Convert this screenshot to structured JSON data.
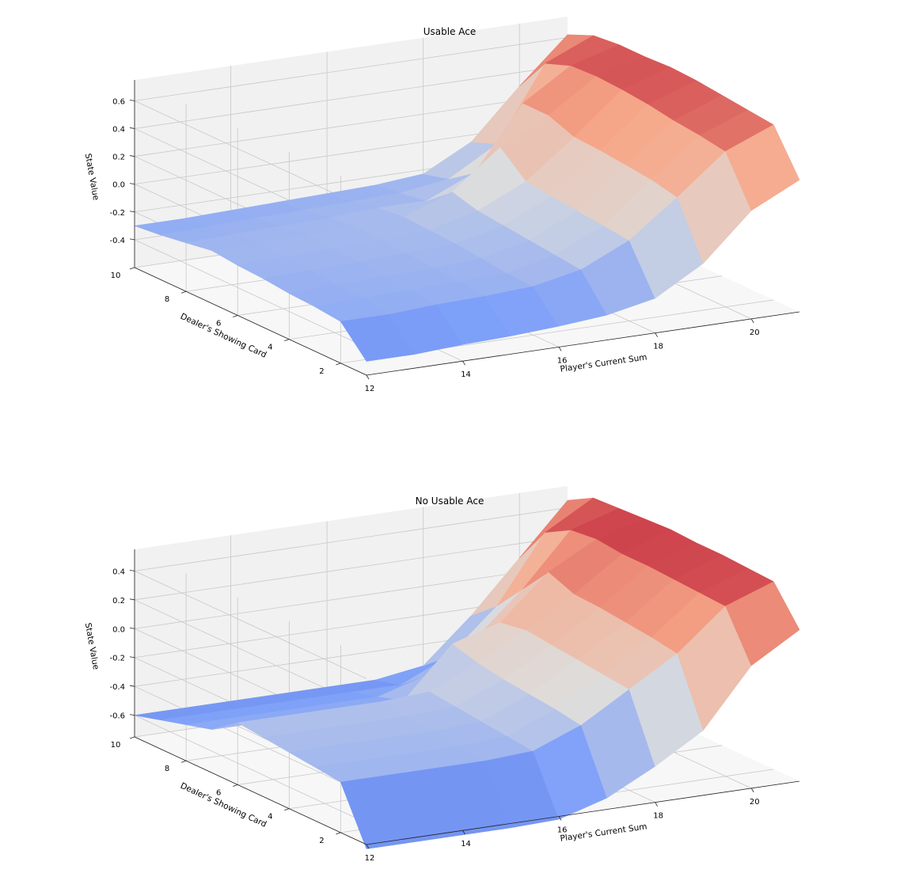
{
  "figure": {
    "background": "#ffffff",
    "pane_color": "#f2f2f2",
    "grid_color": "#c8c8c8"
  },
  "chart_data": [
    {
      "type": "surface",
      "title": "Usable Ace",
      "xlabel": "Player's Current Sum",
      "ylabel": "Dealer's Showing Card",
      "zlabel": "State Value",
      "x": [
        12,
        13,
        14,
        15,
        16,
        17,
        18,
        19,
        20,
        21
      ],
      "y": [
        1,
        2,
        3,
        4,
        5,
        6,
        7,
        8,
        9,
        10
      ],
      "x_ticks": [
        12,
        14,
        16,
        18,
        20
      ],
      "y_ticks": [
        2,
        4,
        6,
        8,
        10
      ],
      "z_ticks": [
        -0.4,
        -0.2,
        0.0,
        0.2,
        0.4,
        0.6
      ],
      "xlim": [
        12,
        21
      ],
      "ylim": [
        1,
        10
      ],
      "zlim": [
        -0.6,
        0.75
      ],
      "colormap": "coolwarm",
      "z": [
        [
          -0.5,
          -0.5,
          -0.48,
          -0.47,
          -0.45,
          -0.42,
          -0.35,
          -0.15,
          0.18,
          0.35
        ],
        [
          -0.3,
          -0.3,
          -0.28,
          -0.27,
          -0.25,
          -0.18,
          -0.02,
          0.24,
          0.52,
          0.66
        ],
        [
          -0.28,
          -0.27,
          -0.26,
          -0.25,
          -0.24,
          -0.16,
          0.0,
          0.28,
          0.55,
          0.68
        ],
        [
          -0.27,
          -0.26,
          -0.25,
          -0.24,
          -0.22,
          -0.14,
          0.02,
          0.3,
          0.57,
          0.7
        ],
        [
          -0.25,
          -0.24,
          -0.23,
          -0.22,
          -0.2,
          -0.12,
          0.04,
          0.32,
          0.6,
          0.72
        ],
        [
          -0.24,
          -0.23,
          -0.22,
          -0.21,
          -0.19,
          -0.1,
          0.06,
          0.33,
          0.62,
          0.73
        ],
        [
          -0.22,
          -0.22,
          -0.21,
          -0.2,
          -0.18,
          -0.05,
          0.22,
          0.4,
          0.63,
          0.72
        ],
        [
          -0.25,
          -0.24,
          -0.23,
          -0.22,
          -0.2,
          -0.2,
          -0.05,
          0.4,
          0.62,
          0.72
        ],
        [
          -0.28,
          -0.27,
          -0.26,
          -0.25,
          -0.24,
          -0.23,
          -0.18,
          0.02,
          0.55,
          0.7
        ],
        [
          -0.3,
          -0.3,
          -0.29,
          -0.28,
          -0.27,
          -0.26,
          -0.23,
          -0.05,
          0.3,
          0.62
        ]
      ]
    },
    {
      "type": "surface",
      "title": "No Usable Ace",
      "xlabel": "Player's Current Sum",
      "ylabel": "Dealer's Showing Card",
      "zlabel": "State Value",
      "x": [
        12,
        13,
        14,
        15,
        16,
        17,
        18,
        19,
        20,
        21
      ],
      "y": [
        1,
        2,
        3,
        4,
        5,
        6,
        7,
        8,
        9,
        10
      ],
      "x_ticks": [
        12,
        14,
        16,
        18,
        20
      ],
      "y_ticks": [
        2,
        4,
        6,
        8,
        10
      ],
      "z_ticks": [
        -0.6,
        -0.4,
        -0.2,
        0.0,
        0.2,
        0.4
      ],
      "xlim": [
        12,
        21
      ],
      "ylim": [
        1,
        10
      ],
      "zlim": [
        -0.75,
        0.55
      ],
      "colormap": "coolwarm",
      "z": [
        [
          -0.78,
          -0.78,
          -0.78,
          -0.78,
          -0.77,
          -0.67,
          -0.5,
          -0.3,
          0.1,
          0.3
        ],
        [
          -0.4,
          -0.4,
          -0.4,
          -0.4,
          -0.38,
          -0.25,
          -0.05,
          0.15,
          0.43,
          0.55
        ],
        [
          -0.38,
          -0.38,
          -0.38,
          -0.38,
          -0.36,
          -0.22,
          -0.03,
          0.18,
          0.44,
          0.56
        ],
        [
          -0.36,
          -0.36,
          -0.36,
          -0.36,
          -0.34,
          -0.2,
          -0.01,
          0.2,
          0.45,
          0.57
        ],
        [
          -0.34,
          -0.34,
          -0.34,
          -0.34,
          -0.32,
          -0.18,
          0.01,
          0.22,
          0.46,
          0.57
        ],
        [
          -0.32,
          -0.32,
          -0.32,
          -0.32,
          -0.3,
          -0.15,
          0.03,
          0.23,
          0.46,
          0.58
        ],
        [
          -0.45,
          -0.45,
          -0.45,
          -0.45,
          -0.44,
          -0.1,
          0.0,
          0.3,
          0.48,
          0.57
        ],
        [
          -0.5,
          -0.5,
          -0.5,
          -0.5,
          -0.5,
          -0.4,
          -0.2,
          0.1,
          0.46,
          0.56
        ],
        [
          -0.55,
          -0.55,
          -0.55,
          -0.55,
          -0.55,
          -0.55,
          -0.4,
          -0.1,
          0.36,
          0.55
        ],
        [
          -0.6,
          -0.6,
          -0.6,
          -0.6,
          -0.6,
          -0.6,
          -0.55,
          -0.25,
          0.1,
          0.45
        ]
      ]
    }
  ]
}
